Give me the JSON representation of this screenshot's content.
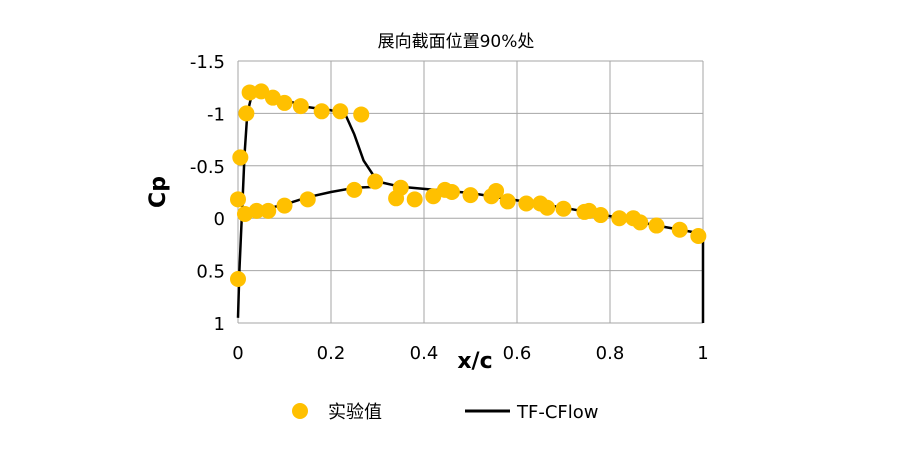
{
  "chart_data": {
    "type": "scatter",
    "title": "展向截面位置90%处",
    "xlabel": "x/c",
    "ylabel": "Cp",
    "xlim": [
      0,
      1
    ],
    "ylim": [
      -1.5,
      1
    ],
    "y_inverted": true,
    "x_ticks": [
      "0",
      "0.2",
      "0.4",
      "0.6",
      "0.8",
      "1"
    ],
    "x_tick_values": [
      0,
      0.2,
      0.4,
      0.6,
      0.8,
      1
    ],
    "y_ticks": [
      "-1.5",
      "-1",
      "-0.5",
      "0",
      "0.5",
      "1"
    ],
    "y_tick_values": [
      -1.5,
      -1,
      -0.5,
      0,
      0.5,
      1
    ],
    "grid": true,
    "legend_position": "bottom",
    "series": [
      {
        "name": "实验值",
        "kind": "scatter",
        "color": "#FFC000",
        "points": [
          [
            0.0,
            0.58
          ],
          [
            0.0,
            -0.18
          ],
          [
            0.005,
            -0.58
          ],
          [
            0.015,
            -0.04
          ],
          [
            0.018,
            -1.0
          ],
          [
            0.025,
            -1.2
          ],
          [
            0.04,
            -0.07
          ],
          [
            0.05,
            -1.21
          ],
          [
            0.065,
            -0.07
          ],
          [
            0.075,
            -1.15
          ],
          [
            0.1,
            -0.12
          ],
          [
            0.1,
            -1.1
          ],
          [
            0.135,
            -1.07
          ],
          [
            0.15,
            -0.18
          ],
          [
            0.18,
            -1.02
          ],
          [
            0.22,
            -1.02
          ],
          [
            0.25,
            -0.27
          ],
          [
            0.265,
            -0.99
          ],
          [
            0.295,
            -0.35
          ],
          [
            0.34,
            -0.19
          ],
          [
            0.35,
            -0.29
          ],
          [
            0.38,
            -0.18
          ],
          [
            0.42,
            -0.21
          ],
          [
            0.445,
            -0.27
          ],
          [
            0.46,
            -0.25
          ],
          [
            0.5,
            -0.22
          ],
          [
            0.545,
            -0.21
          ],
          [
            0.555,
            -0.26
          ],
          [
            0.58,
            -0.16
          ],
          [
            0.62,
            -0.14
          ],
          [
            0.65,
            -0.14
          ],
          [
            0.665,
            -0.1
          ],
          [
            0.7,
            -0.09
          ],
          [
            0.745,
            -0.06
          ],
          [
            0.755,
            -0.07
          ],
          [
            0.78,
            -0.03
          ],
          [
            0.82,
            0.0
          ],
          [
            0.85,
            0.0
          ],
          [
            0.865,
            0.04
          ],
          [
            0.9,
            0.07
          ],
          [
            0.95,
            0.11
          ],
          [
            0.99,
            0.17
          ]
        ]
      },
      {
        "name": "TF-CFlow",
        "kind": "line",
        "color": "#000000",
        "points": [
          [
            0.0,
            0.95
          ],
          [
            0.003,
            0.5
          ],
          [
            0.006,
            0.2
          ],
          [
            0.01,
            -0.2
          ],
          [
            0.014,
            -0.6
          ],
          [
            0.02,
            -1.0
          ],
          [
            0.03,
            -1.18
          ],
          [
            0.05,
            -1.2
          ],
          [
            0.1,
            -1.13
          ],
          [
            0.15,
            -1.06
          ],
          [
            0.2,
            -1.03
          ],
          [
            0.23,
            -1.0
          ],
          [
            0.25,
            -0.8
          ],
          [
            0.27,
            -0.55
          ],
          [
            0.3,
            -0.35
          ],
          [
            0.35,
            -0.3
          ],
          [
            0.4,
            -0.28
          ],
          [
            0.5,
            -0.24
          ],
          [
            0.6,
            -0.17
          ],
          [
            0.7,
            -0.1
          ],
          [
            0.8,
            -0.02
          ],
          [
            0.9,
            0.07
          ],
          [
            1.0,
            0.15
          ],
          [
            1.0,
            1.0
          ]
        ]
      },
      {
        "name": "",
        "kind": "line",
        "color": "#000000",
        "points": [
          [
            0.01,
            -0.02
          ],
          [
            0.05,
            -0.08
          ],
          [
            0.1,
            -0.13
          ],
          [
            0.15,
            -0.2
          ],
          [
            0.2,
            -0.25
          ],
          [
            0.25,
            -0.29
          ],
          [
            0.3,
            -0.3
          ]
        ]
      }
    ]
  }
}
